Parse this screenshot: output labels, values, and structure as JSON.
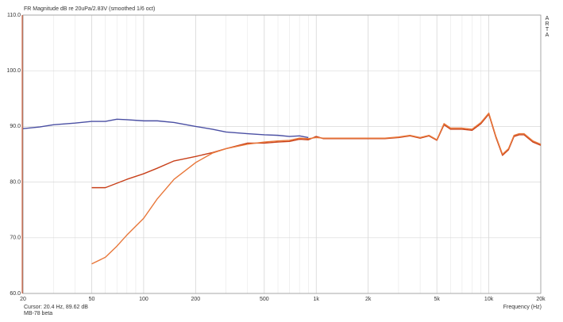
{
  "chart_data": {
    "type": "line",
    "title": "FR Magnitude dB re 20uPa/2.83V (smoothed 1/6 oct)",
    "cursor_label": "Cursor: 20.4 Hz, 89.62 dB",
    "footer_label": "MB-78 beta",
    "x_label": "Frequency (Hz)",
    "side_label": "ARTA",
    "log_x": true,
    "grid": true,
    "xlim": [
      20,
      20000
    ],
    "ylim": [
      60,
      110
    ],
    "xticks": [
      20,
      50,
      100,
      200,
      500,
      {
        "value": 1000,
        "label": "1k"
      },
      {
        "value": 2000,
        "label": "2k"
      },
      {
        "value": 5000,
        "label": "5k"
      },
      {
        "value": 10000,
        "label": "10k"
      },
      {
        "value": 20000,
        "label": "20k"
      }
    ],
    "xgrid": [
      30,
      40,
      60,
      70,
      80,
      90,
      300,
      400,
      600,
      700,
      800,
      900,
      3000,
      4000,
      6000,
      7000,
      8000,
      9000
    ],
    "yticks": [
      {
        "value": 60,
        "label": "60.0"
      },
      {
        "value": 70,
        "label": "70.0"
      },
      {
        "value": 80,
        "label": "80.0"
      },
      {
        "value": 90,
        "label": "90.0"
      },
      {
        "value": 100,
        "label": "100.0"
      },
      {
        "value": 110,
        "label": "110.0"
      }
    ],
    "x": [
      20,
      25,
      30,
      40,
      50,
      60,
      70,
      80,
      100,
      120,
      150,
      200,
      250,
      300,
      400,
      500,
      600,
      700,
      800,
      900,
      1000,
      1100,
      1200,
      1500,
      2000,
      2500,
      3000,
      3500,
      4000,
      4500,
      5000,
      5500,
      6000,
      7000,
      8000,
      9000,
      10000,
      11000,
      12000,
      13000,
      14000,
      15000,
      16000,
      18000,
      20000
    ],
    "series": [
      {
        "color": "#4a4fa3",
        "values": [
          89.6,
          89.9,
          90.3,
          90.6,
          90.9,
          90.9,
          91.3,
          91.2,
          91.0,
          91.0,
          90.7,
          90.0,
          89.5,
          89.0,
          88.7,
          88.5,
          88.4,
          88.2,
          88.3,
          88.0,
          null,
          null,
          null,
          null,
          null,
          null,
          null,
          null,
          null,
          null,
          null,
          null,
          null,
          null,
          null,
          null,
          null,
          null,
          null,
          null,
          null,
          null,
          null,
          null,
          null
        ]
      },
      {
        "color": "#c8401a",
        "values": [
          null,
          null,
          null,
          null,
          79.0,
          79.0,
          79.8,
          80.5,
          81.5,
          82.5,
          83.8,
          84.6,
          85.3,
          86.0,
          87.0,
          87.0,
          87.2,
          87.3,
          87.7,
          87.6,
          88.2,
          87.8,
          87.8,
          87.8,
          87.8,
          87.8,
          88.0,
          88.3,
          87.9,
          88.3,
          87.5,
          90.3,
          89.5,
          89.5,
          89.3,
          90.5,
          92.2,
          88.0,
          84.8,
          85.8,
          88.2,
          88.5,
          88.5,
          87.2,
          86.6
        ]
      },
      {
        "color": "#e8773a",
        "values": [
          null,
          null,
          null,
          null,
          65.3,
          66.5,
          68.5,
          70.5,
          73.5,
          77.0,
          80.5,
          83.5,
          85.2,
          86.0,
          86.8,
          87.2,
          87.4,
          87.5,
          87.9,
          87.8,
          88.0,
          87.9,
          87.9,
          87.9,
          87.9,
          87.9,
          88.1,
          88.4,
          88.0,
          88.4,
          87.6,
          90.5,
          89.7,
          89.7,
          89.5,
          90.7,
          92.4,
          88.2,
          85.0,
          86.0,
          88.4,
          88.7,
          88.7,
          87.4,
          86.8
        ]
      }
    ]
  }
}
